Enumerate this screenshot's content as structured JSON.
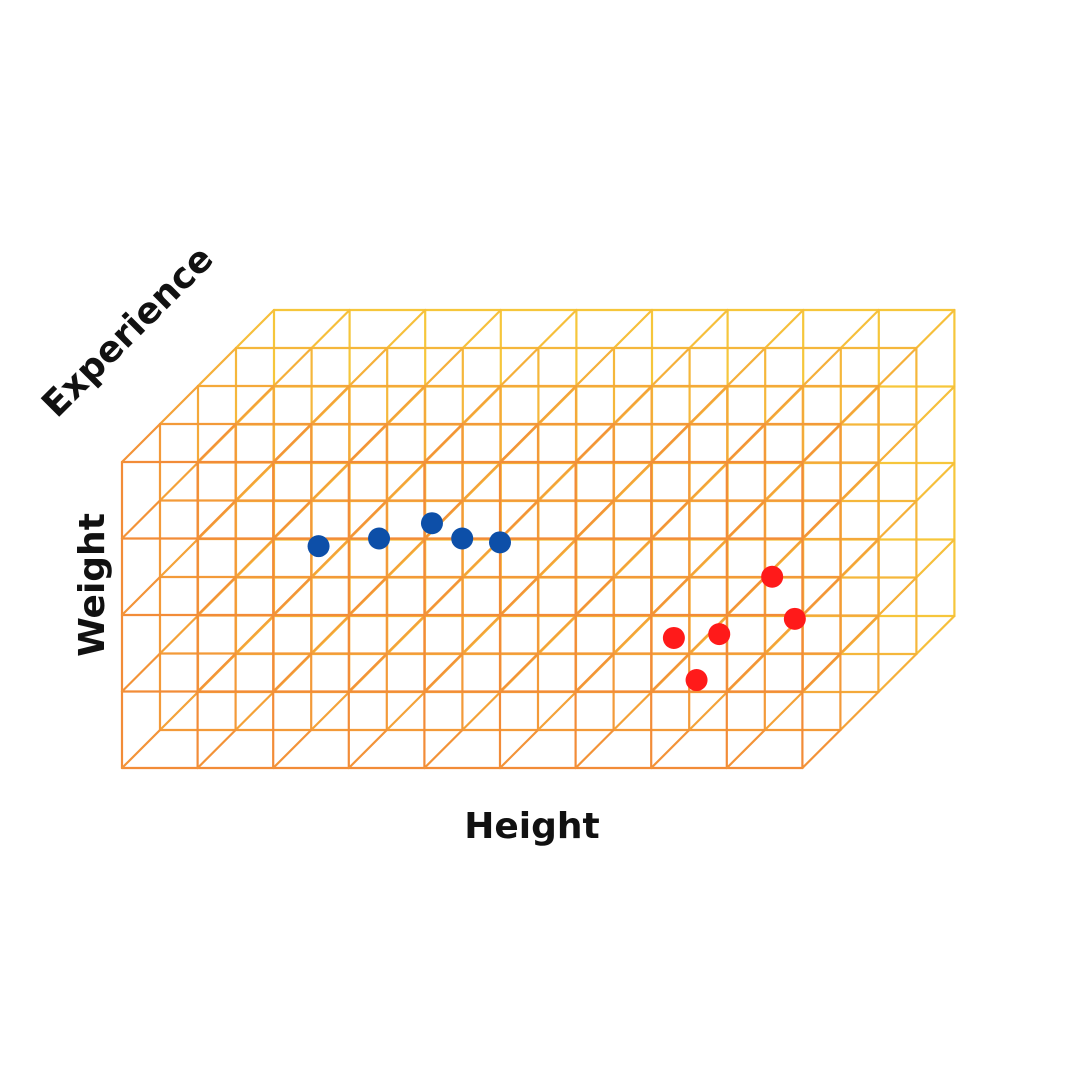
{
  "axes": {
    "x_label": "Height",
    "y_label": "Weight",
    "z_label": "Experience"
  },
  "lattice": {
    "columns": 9,
    "rows": 4,
    "layers": 4,
    "front_color": "#F28C38",
    "back_color": "#F7D03C"
  },
  "clusters": [
    {
      "color": "#0D4FA8",
      "points": [
        {
          "x": 2.6,
          "y": 2.9
        },
        {
          "x": 3.4,
          "y": 3.0
        },
        {
          "x": 4.1,
          "y": 3.2
        },
        {
          "x": 4.5,
          "y": 3.0
        },
        {
          "x": 5.0,
          "y": 2.95
        }
      ]
    },
    {
      "color": "#FF1A1A",
      "points": [
        {
          "x": 7.3,
          "y": 1.7
        },
        {
          "x": 7.6,
          "y": 1.15
        },
        {
          "x": 7.9,
          "y": 1.75
        },
        {
          "x": 8.6,
          "y": 2.5
        },
        {
          "x": 8.9,
          "y": 1.95
        }
      ]
    }
  ]
}
